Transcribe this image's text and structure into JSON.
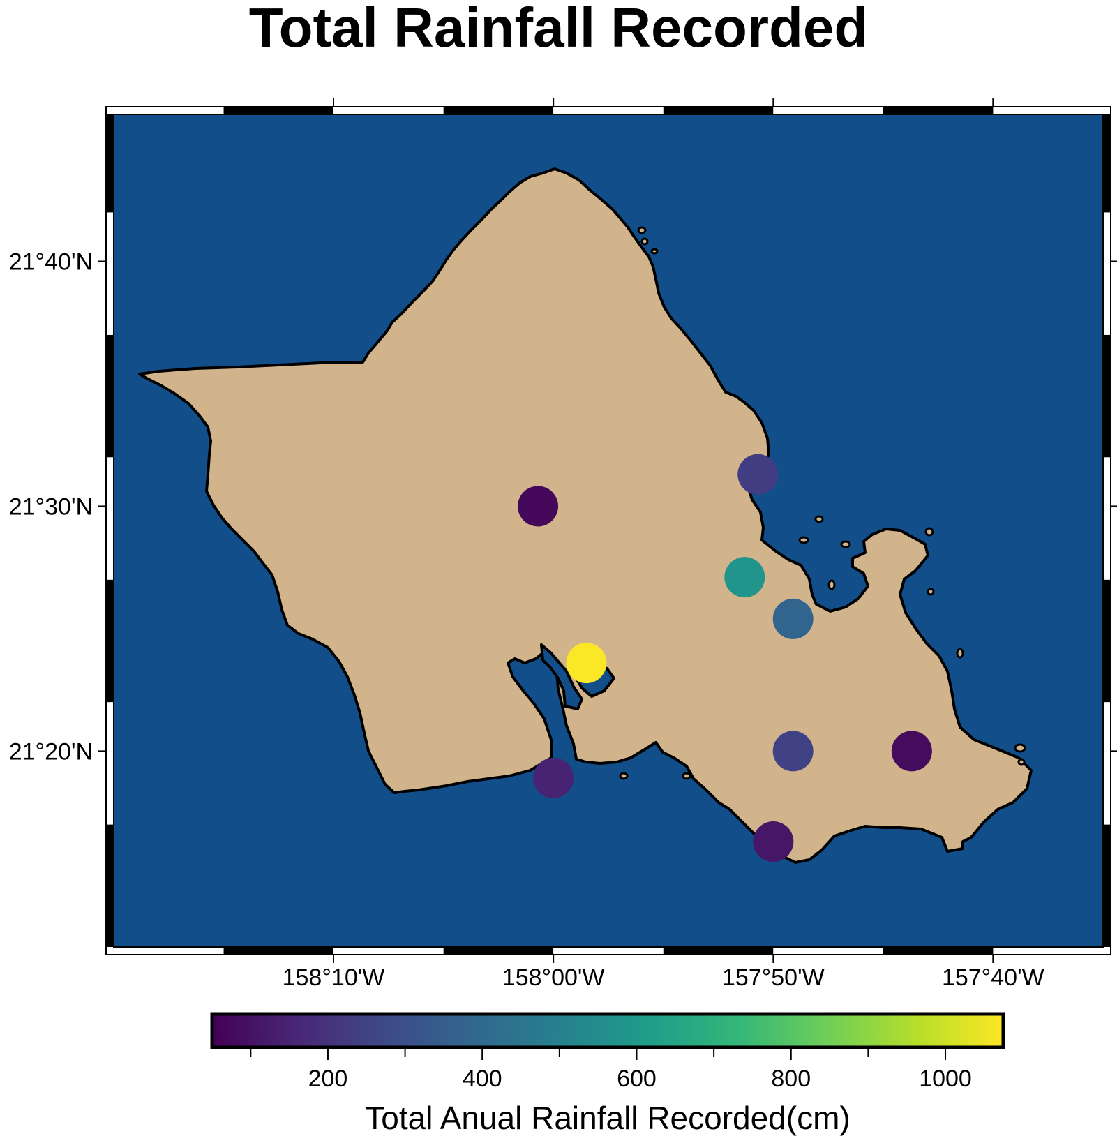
{
  "title": "Total Rainfall Recorded",
  "colors": {
    "ocean": "#124e8a",
    "land": "#d2b48c",
    "coastline": "#000000",
    "frame_dark": "#000000",
    "frame_light": "#ffffff"
  },
  "map": {
    "lon_range": [
      -158.3333,
      -157.5833
    ],
    "lat_range": [
      21.2,
      21.7667
    ],
    "lon_ticks": [
      {
        "value": -158.1667,
        "label": "158°10'W"
      },
      {
        "value": -158.0,
        "label": "158°00'W"
      },
      {
        "value": -157.8333,
        "label": "157°50'W"
      },
      {
        "value": -157.6667,
        "label": "157°40'W"
      }
    ],
    "lat_ticks": [
      {
        "value": 21.6667,
        "label": "21°40'N"
      },
      {
        "value": 21.5,
        "label": "21°30'N"
      },
      {
        "value": 21.3333,
        "label": "21°20'N"
      }
    ]
  },
  "stations": [
    {
      "lon": -158.0117,
      "lat": 21.5,
      "rainfall": 70
    },
    {
      "lon": -157.845,
      "lat": 21.5217,
      "rainfall": 230
    },
    {
      "lon": -157.855,
      "lat": 21.4517,
      "rainfall": 580
    },
    {
      "lon": -157.8183,
      "lat": 21.4233,
      "rainfall": 380
    },
    {
      "lon": -157.975,
      "lat": 21.3933,
      "rainfall": 1070
    },
    {
      "lon": -158.0,
      "lat": 21.315,
      "rainfall": 150
    },
    {
      "lon": -157.8183,
      "lat": 21.3333,
      "rainfall": 250
    },
    {
      "lon": -157.7283,
      "lat": 21.3333,
      "rainfall": 80
    },
    {
      "lon": -157.8333,
      "lat": 21.2717,
      "rainfall": 110
    }
  ],
  "colorbar": {
    "label": "Total Anual Rainfall Recorded(cm)",
    "min": 50,
    "max": 1075,
    "ticks": [
      {
        "value": 200,
        "label": "200"
      },
      {
        "value": 400,
        "label": "400"
      },
      {
        "value": 600,
        "label": "600"
      },
      {
        "value": 800,
        "label": "800"
      },
      {
        "value": 1000,
        "label": "1000"
      }
    ],
    "minor_ticks": [
      100,
      300,
      500,
      700,
      900
    ],
    "colormap": [
      "#440154",
      "#482878",
      "#3e4a89",
      "#31688e",
      "#26828e",
      "#1f9e89",
      "#35b779",
      "#6ece58",
      "#b5de2b",
      "#fde725"
    ]
  }
}
